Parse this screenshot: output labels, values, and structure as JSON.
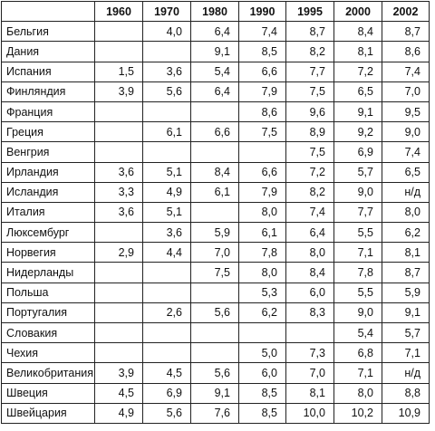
{
  "header": [
    "",
    "1960",
    "1970",
    "1980",
    "1990",
    "1995",
    "2000",
    "2002"
  ],
  "rows": [
    {
      "country": "Бельгия",
      "values": [
        "",
        "4,0",
        "6,4",
        "7,4",
        "8,7",
        "8,4",
        "8,7"
      ]
    },
    {
      "country": "Дания",
      "values": [
        "",
        "",
        "9,1",
        "8,5",
        "8,2",
        "8,1",
        "8,6"
      ]
    },
    {
      "country": "Испания",
      "values": [
        "1,5",
        "3,6",
        "5,4",
        "6,6",
        "7,7",
        "7,2",
        "7,4"
      ]
    },
    {
      "country": "Финляндия",
      "values": [
        "3,9",
        "5,6",
        "6,4",
        "7,9",
        "7,5",
        "6,5",
        "7,0"
      ]
    },
    {
      "country": "Франция",
      "values": [
        "",
        "",
        "",
        "8,6",
        "9,6",
        "9,1",
        "9,5"
      ]
    },
    {
      "country": "Греция",
      "values": [
        "",
        "6,1",
        "6,6",
        "7,5",
        "8,9",
        "9,2",
        "9,0"
      ]
    },
    {
      "country": "Венгрия",
      "values": [
        "",
        "",
        "",
        "",
        "7,5",
        "6,9",
        "7,4"
      ]
    },
    {
      "country": "Ирландия",
      "values": [
        "3,6",
        "5,1",
        "8,4",
        "6,6",
        "7,2",
        "5,7",
        "6,5"
      ]
    },
    {
      "country": "Исландия",
      "values": [
        "3,3",
        "4,9",
        "6,1",
        "7,9",
        "8,2",
        "9,0",
        "н/д"
      ]
    },
    {
      "country": "Италия",
      "values": [
        "3,6",
        "5,1",
        "",
        "8,0",
        "7,4",
        "7,7",
        "8,0"
      ]
    },
    {
      "country": "Люксембург",
      "values": [
        "",
        "3,6",
        "5,9",
        "6,1",
        "6,4",
        "5,5",
        "6,2"
      ]
    },
    {
      "country": "Норвегия",
      "values": [
        "2,9",
        "4,4",
        "7,0",
        "7,8",
        "8,0",
        "7,1",
        "8,1"
      ]
    },
    {
      "country": "Нидерланды",
      "values": [
        "",
        "",
        "7,5",
        "8,0",
        "8,4",
        "7,8",
        "8,7"
      ]
    },
    {
      "country": "Польша",
      "values": [
        "",
        "",
        "",
        "5,3",
        "6,0",
        "5,5",
        "5,9"
      ]
    },
    {
      "country": "Португалия",
      "values": [
        "",
        "2,6",
        "5,6",
        "6,2",
        "8,3",
        "9,0",
        "9,1"
      ]
    },
    {
      "country": "Словакия",
      "values": [
        "",
        "",
        "",
        "",
        "",
        "5,4",
        "5,7"
      ]
    },
    {
      "country": "Чехия",
      "values": [
        "",
        "",
        "",
        "5,0",
        "7,3",
        "6,8",
        "7,1"
      ]
    },
    {
      "country": "Великобритания",
      "values": [
        "3,9",
        "4,5",
        "5,6",
        "6,0",
        "7,0",
        "7,1",
        "н/д"
      ]
    },
    {
      "country": "Швеция",
      "values": [
        "4,5",
        "6,9",
        "9,1",
        "8,5",
        "8,1",
        "8,0",
        "8,8"
      ]
    },
    {
      "country": "Швейцария",
      "values": [
        "4,9",
        "5,6",
        "7,6",
        "8,5",
        "10,0",
        "10,2",
        "10,9"
      ]
    }
  ]
}
